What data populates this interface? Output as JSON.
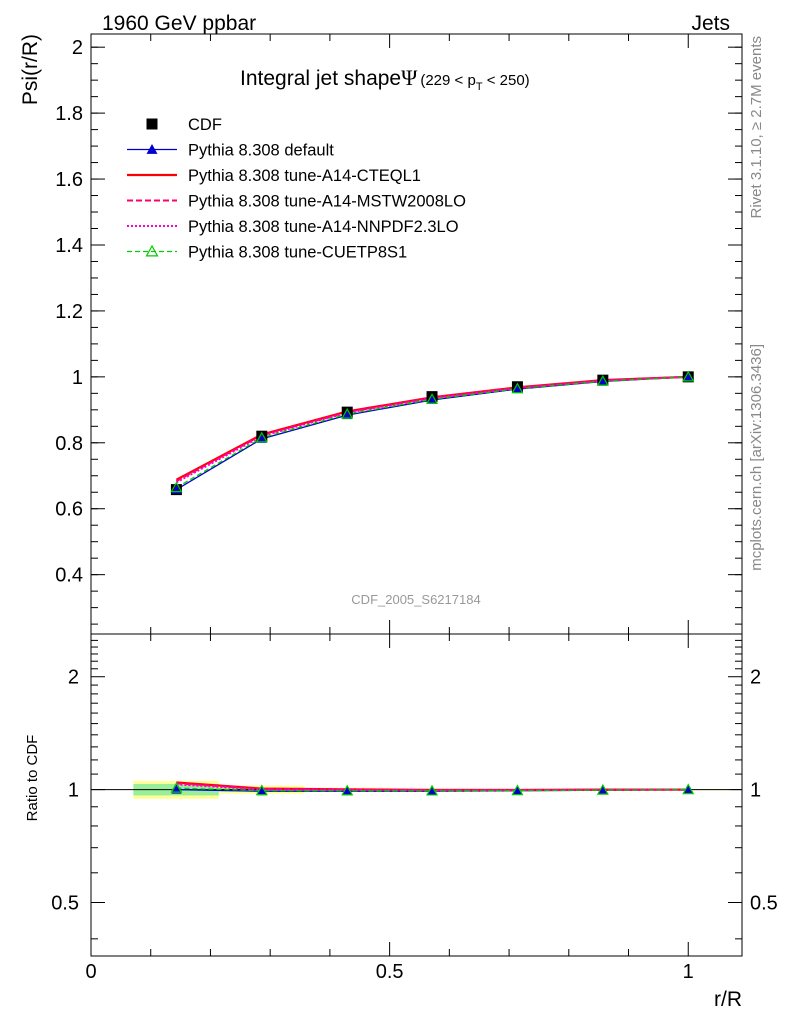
{
  "header": {
    "left_text": "1960 GeV ppbar",
    "right_text": "Jets"
  },
  "side_labels": {
    "rivet": "Rivet 3.1.10, ≥ 2.7M events",
    "mcplots": "mcplots.cern.ch [arXiv:1306.3436]"
  },
  "watermark": "CDF_2005_S6217184",
  "colors": {
    "cdf": "#000000",
    "default": "#0000cc",
    "cteql1": "#ff0000",
    "mstw": "#ff0066",
    "nnpdf": "#ff00cc",
    "cuetp": "#00cc00",
    "band_outer": "#ffff99",
    "band_inner": "#99ee99"
  },
  "chart_data": [
    {
      "type": "line",
      "title": "Integral jet shape",
      "title_symbol": "Ψ",
      "title_range": "(229 < p",
      "title_range_sub": "T",
      "title_range_end": " < 250)",
      "xlabel": "r/R",
      "ylabel": "Psi(r/R)",
      "xlim": [
        0,
        1.09
      ],
      "ylim": [
        0.22,
        2.04
      ],
      "yticks": [
        "0.4",
        "0.6",
        "0.8",
        "1",
        "1.2",
        "1.4",
        "1.6",
        "1.8",
        "2"
      ],
      "x": [
        0.143,
        0.286,
        0.429,
        0.571,
        0.714,
        0.857,
        1.0
      ],
      "series": [
        {
          "name": "CDF",
          "style": "marker-square",
          "values": [
            0.658,
            0.82,
            0.893,
            0.94,
            0.97,
            0.99,
            1.0
          ]
        },
        {
          "name": "Pythia 8.308 default",
          "style": "solid-triangle",
          "values": [
            0.658,
            0.812,
            0.884,
            0.93,
            0.963,
            0.986,
            1.0
          ]
        },
        {
          "name": "Pythia 8.308 tune-A14-CTEQL1",
          "style": "solid-thick",
          "values": [
            0.688,
            0.825,
            0.895,
            0.938,
            0.968,
            0.99,
            1.0
          ]
        },
        {
          "name": "Pythia 8.308 tune-A14-MSTW2008LO",
          "style": "dashed",
          "values": [
            0.684,
            0.823,
            0.893,
            0.937,
            0.967,
            0.989,
            1.0
          ]
        },
        {
          "name": "Pythia 8.308 tune-A14-NNPDF2.3LO",
          "style": "dotted",
          "values": [
            0.68,
            0.82,
            0.891,
            0.935,
            0.966,
            0.988,
            1.0
          ]
        },
        {
          "name": "Pythia 8.308 tune-CUETP8S1",
          "style": "dashed-open-triangle",
          "values": [
            0.664,
            0.815,
            0.887,
            0.932,
            0.964,
            0.987,
            1.0
          ]
        }
      ]
    },
    {
      "type": "line",
      "ylabel": "Ratio to CDF",
      "xlabel": "r/R",
      "xlim": [
        0,
        1.09
      ],
      "ylim": [
        0.36,
        2.6
      ],
      "log_y": true,
      "yticks": [
        "0.5",
        "1",
        "2"
      ],
      "xticks": [
        "0",
        "0.5",
        "1"
      ],
      "x": [
        0.143,
        0.286,
        0.429,
        0.571,
        0.714,
        0.857,
        1.0
      ],
      "bins": [
        [
          0.071,
          0.214
        ],
        [
          0.214,
          0.357
        ],
        [
          0.357,
          0.5
        ],
        [
          0.5,
          0.643
        ],
        [
          0.643,
          0.786
        ],
        [
          0.786,
          0.929
        ],
        [
          0.929,
          1.071
        ]
      ],
      "band_outer": [
        0.055,
        0.025,
        0.012,
        0.008,
        0.006,
        0.005,
        0.004
      ],
      "band_inner": [
        0.035,
        0.012,
        0.006,
        0.004,
        0.003,
        0.002,
        0.002
      ],
      "series": [
        {
          "name": "Pythia 8.308 default",
          "values": [
            1.0,
            0.99,
            0.99,
            0.99,
            0.993,
            0.996,
            1.0
          ]
        },
        {
          "name": "Pythia 8.308 tune-A14-CTEQL1",
          "values": [
            1.045,
            1.006,
            1.002,
            0.998,
            0.998,
            1.0,
            1.0
          ]
        },
        {
          "name": "Pythia 8.308 tune-A14-MSTW2008LO",
          "values": [
            1.04,
            1.004,
            1.0,
            0.997,
            0.997,
            0.999,
            1.0
          ]
        },
        {
          "name": "Pythia 8.308 tune-A14-NNPDF2.3LO",
          "values": [
            1.033,
            1.0,
            0.998,
            0.995,
            0.996,
            0.998,
            1.0
          ]
        },
        {
          "name": "Pythia 8.308 tune-CUETP8S1",
          "values": [
            1.009,
            0.994,
            0.993,
            0.992,
            0.994,
            0.997,
            1.0
          ]
        }
      ]
    }
  ]
}
